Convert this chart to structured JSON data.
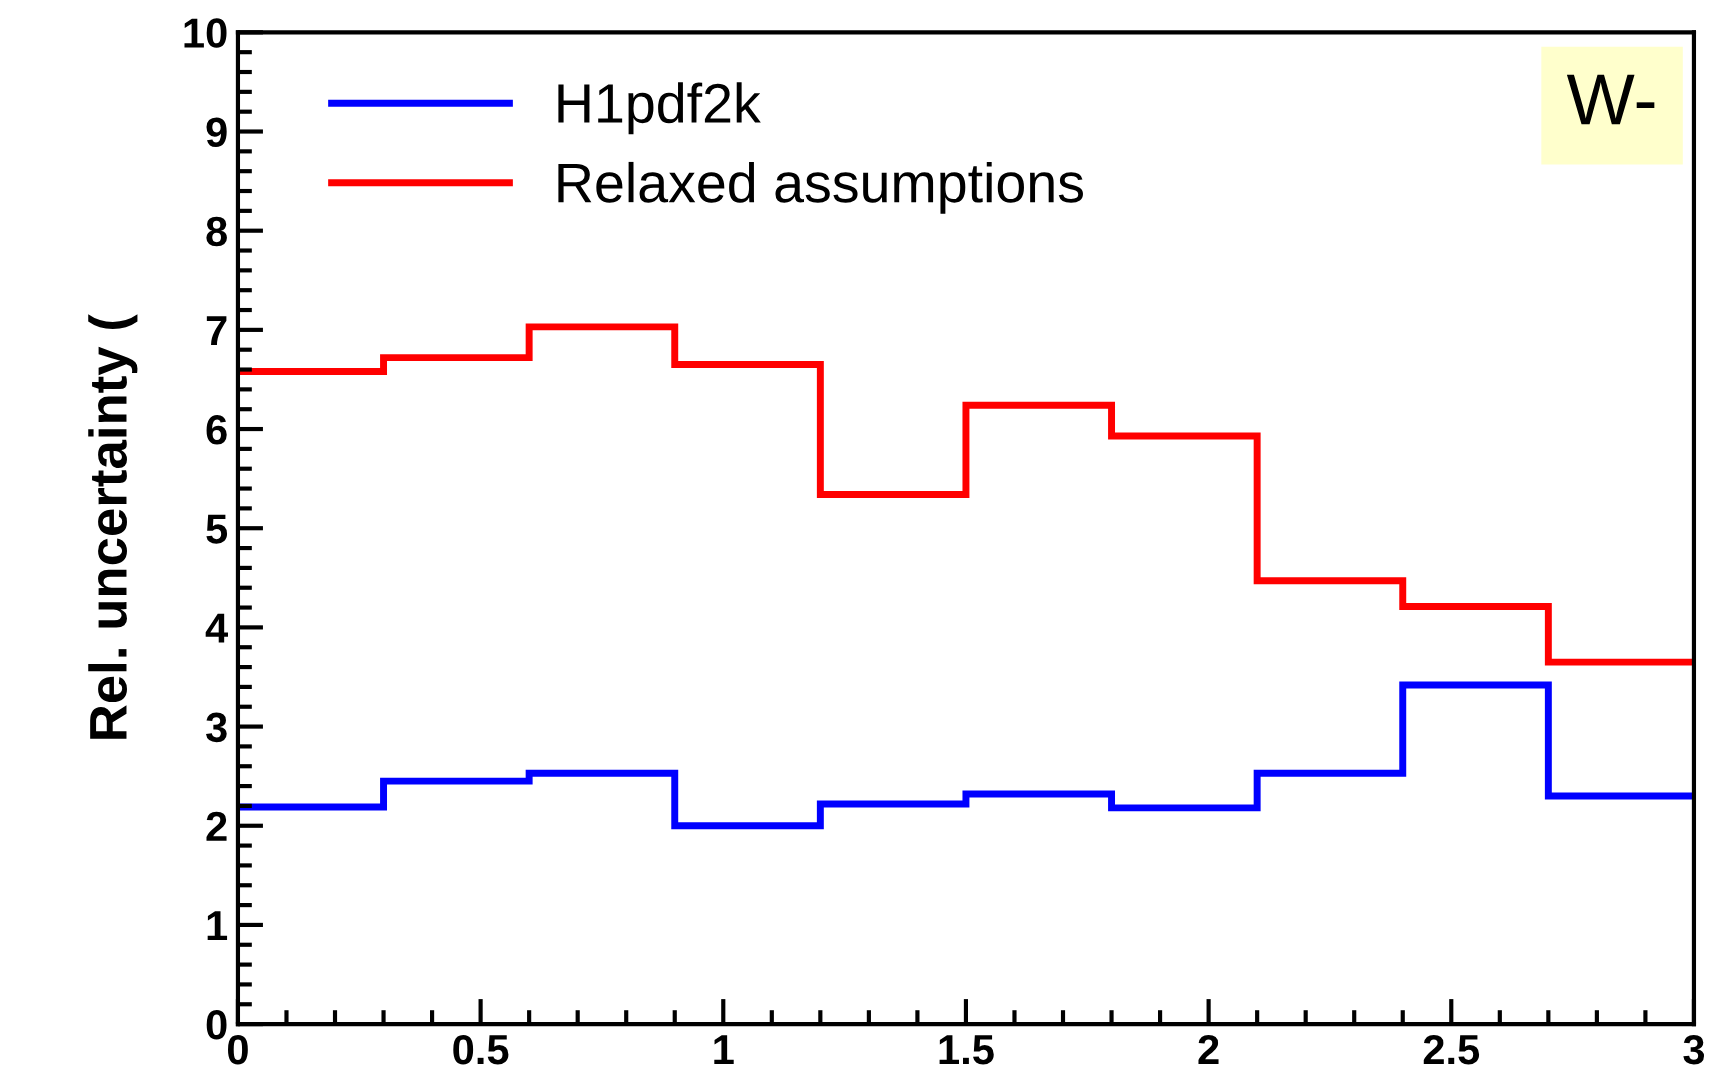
{
  "chart_data": {
    "type": "histogram",
    "ylabel": "Rel. uncertainty (",
    "annotations": [
      "W-"
    ],
    "bins": [
      0,
      0.3,
      0.6,
      0.9,
      1.2,
      1.5,
      1.8,
      2.1,
      2.4,
      2.7,
      3.0
    ],
    "series": [
      {
        "name": "H1pdf2k",
        "color": "#0000ff",
        "values": [
          2.19,
          2.45,
          2.53,
          2.0,
          2.22,
          2.32,
          2.18,
          2.53,
          3.42,
          2.3
        ]
      },
      {
        "name": "Relaxed assumptions",
        "color": "#ff0000",
        "values": [
          6.58,
          6.72,
          7.03,
          6.65,
          5.34,
          6.24,
          5.93,
          4.47,
          4.21,
          3.65
        ]
      }
    ],
    "xlim": [
      0,
      3
    ],
    "xticks": [
      0,
      0.5,
      1,
      1.5,
      2,
      2.5,
      3
    ],
    "ylim": [
      0,
      10
    ],
    "yticks": [
      0,
      1,
      2,
      3,
      4,
      5,
      6,
      7,
      8,
      9,
      10
    ],
    "legend": "top left",
    "grid": false
  }
}
